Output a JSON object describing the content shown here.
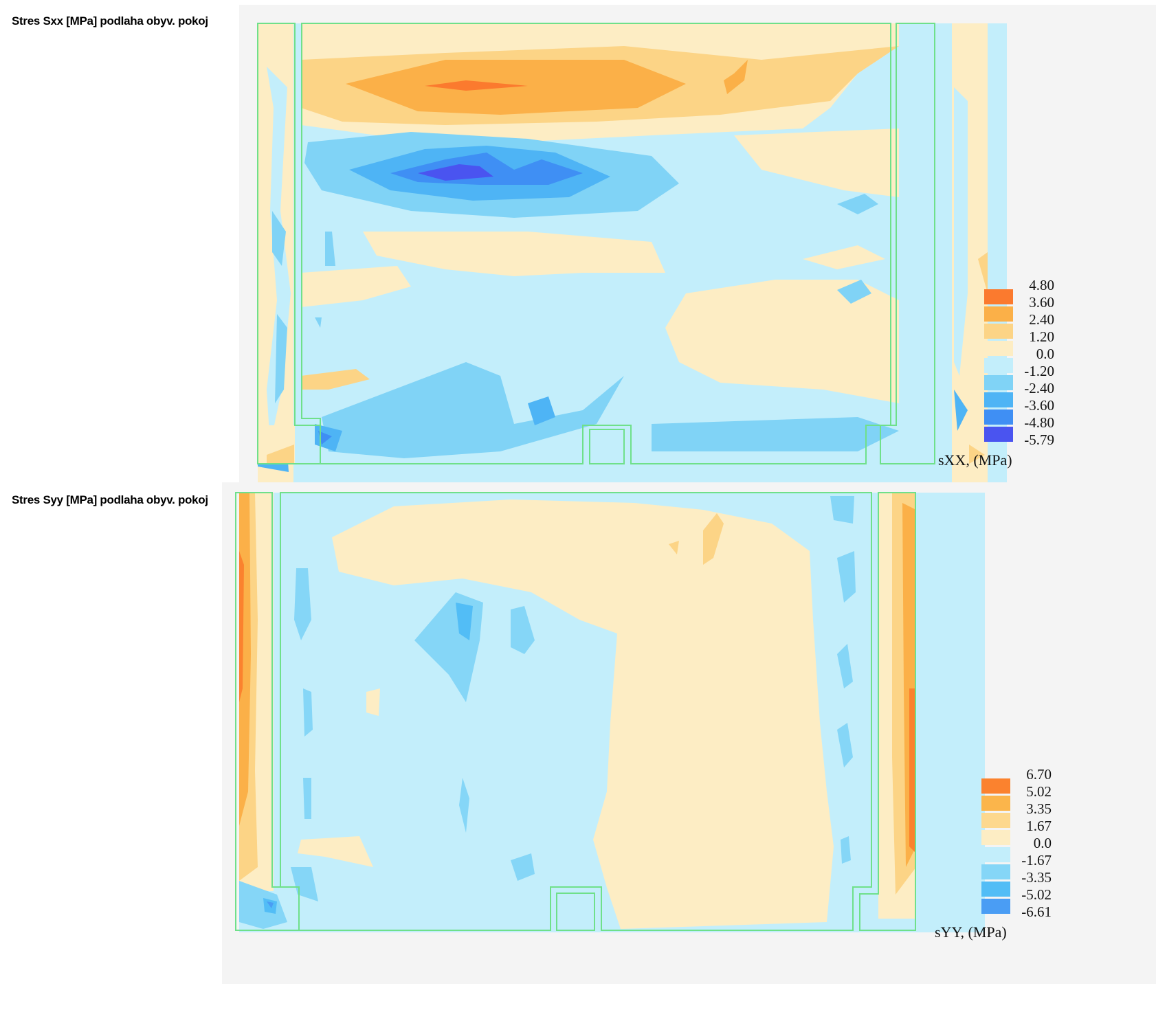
{
  "plots": [
    {
      "title": "Stres Sxx [MPa] podlaha obyv. pokoj",
      "unit_label": "sXX, (MPa)",
      "legend_levels": [
        "4.80",
        "3.60",
        "2.40",
        "1.20",
        "0.0",
        "-1.20",
        "-2.40",
        "-3.60",
        "-4.80",
        "-5.79"
      ],
      "legend_colors": [
        "#fb7a2e",
        "#fbb048",
        "#fcd486",
        "#fdedc4",
        "#c3eefb",
        "#80d3f6",
        "#4eb4f5",
        "#3f8ff4",
        "#4a54f0"
      ]
    },
    {
      "title": "Stres Syy [MPa] podlaha obyv. pokoj",
      "unit_label": "sYY, (MPa)",
      "legend_levels": [
        "6.70",
        "5.02",
        "3.35",
        "1.67",
        "0.0",
        "-1.67",
        "-3.35",
        "-5.02",
        "-6.61"
      ],
      "legend_colors": [
        "#fb822e",
        "#fbb54b",
        "#fdd88e",
        "#fdedc4",
        "#c3eefb",
        "#85d6f7",
        "#52bdf6",
        "#4a9df4"
      ]
    }
  ],
  "colors": {
    "outline": "#6fe08a",
    "panel_background": "#f4f4f4"
  }
}
